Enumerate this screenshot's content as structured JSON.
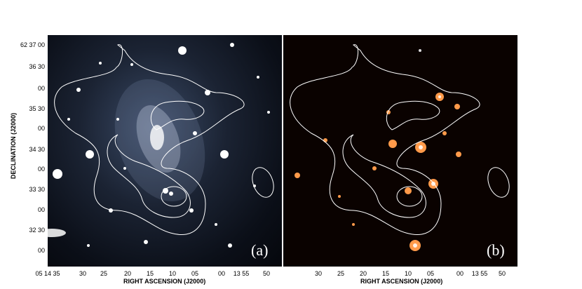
{
  "figure": {
    "panel_a_tag": "(a)",
    "panel_b_tag": "(b)",
    "ylabel": "DECLINATION (J2000)",
    "xlabel_a": "RIGHT ASCENSION (J2000)",
    "xlabel_b": "RIGHT ASCENSION (J2000)",
    "yticks": [
      "62 37 00",
      "36 30",
      "00",
      "35 30",
      "00",
      "34 30",
      "00",
      "33 30",
      "00",
      "32 30",
      "00"
    ],
    "xticks_a": [
      "05 14 35",
      "30",
      "25",
      "20",
      "15",
      "10",
      "05",
      "00",
      "13 55",
      "50"
    ],
    "xticks_b": [
      "30",
      "25",
      "20",
      "15",
      "10",
      "05",
      "00",
      "13 55",
      "50"
    ],
    "colors": {
      "contour": "#ffffff",
      "panel_a_bg": "#0b0f18",
      "panel_b_bg": "#0a0200"
    }
  }
}
